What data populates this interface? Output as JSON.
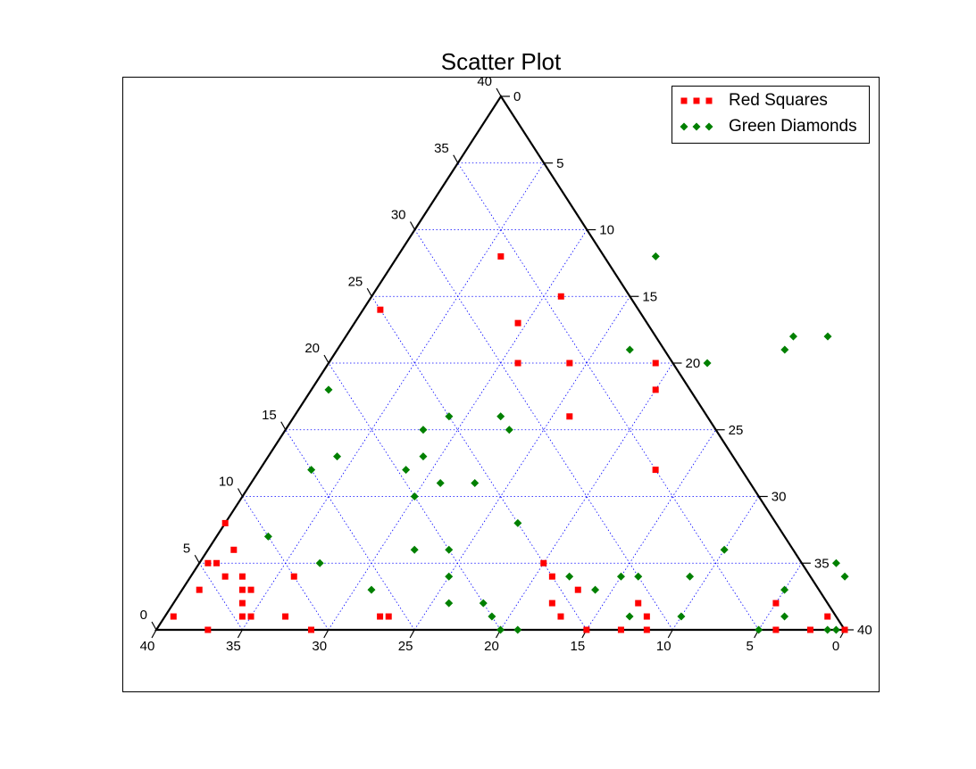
{
  "chart_data": {
    "type": "scatter",
    "subtype": "ternary",
    "title": "Scatter Plot",
    "scale": 40,
    "tick_step": 5,
    "grid": true,
    "legend_position": "top-right",
    "colors": {
      "red": "#ff0000",
      "green": "#008000",
      "grid": "#0000ff"
    },
    "axes": {
      "bottom": {
        "ticks": [
          "40",
          "35",
          "30",
          "25",
          "20",
          "15",
          "10",
          "5",
          "0"
        ]
      },
      "right": {
        "ticks": [
          "0",
          "5",
          "10",
          "15",
          "20",
          "25",
          "30",
          "35",
          "40"
        ]
      },
      "left": {
        "ticks": [
          "0",
          "5",
          "10",
          "15",
          "20",
          "25",
          "30",
          "35",
          "40"
        ]
      }
    },
    "series": [
      {
        "name": "Red Squares",
        "marker": "square",
        "color": "#ff0000",
        "legend_label": "Red Squares",
        "points": [
          [
            38.5,
            1
          ],
          [
            35,
            2
          ],
          [
            28.5,
            0
          ],
          [
            23,
            12
          ],
          [
            20,
            18
          ],
          [
            19,
            20
          ],
          [
            16,
            16
          ],
          [
            14,
            20
          ],
          [
            11,
            20
          ],
          [
            11,
            25
          ],
          [
            9.5,
            23
          ],
          [
            6,
            28
          ],
          [
            6,
            4
          ],
          [
            3,
            0
          ],
          [
            1,
            24
          ],
          [
            0,
            8
          ],
          [
            1.5,
            6
          ],
          [
            1,
            5
          ],
          [
            0.5,
            1
          ],
          [
            0.5,
            5
          ],
          [
            1,
            3
          ],
          [
            2,
            4
          ],
          [
            3,
            4
          ],
          [
            3.5,
            3
          ],
          [
            4,
            2
          ],
          [
            4,
            3
          ],
          [
            4.5,
            1
          ],
          [
            5,
            1
          ],
          [
            7,
            1
          ],
          [
            9,
            0
          ],
          [
            12.5,
            1
          ],
          [
            13,
            1
          ],
          [
            20,
            5
          ],
          [
            21,
            4
          ],
          [
            22,
            2
          ],
          [
            23,
            1
          ],
          [
            23,
            3
          ],
          [
            25,
            0
          ],
          [
            27,
            0
          ],
          [
            27,
            2
          ],
          [
            28,
            1
          ],
          [
            36,
            0
          ],
          [
            38,
            0
          ],
          [
            40,
            0
          ]
        ]
      },
      {
        "name": "Green Diamonds",
        "marker": "diamond",
        "color": "#008000",
        "legend_label": "Green Diamonds",
        "points": [
          [
            39.5,
            0
          ],
          [
            37,
            5
          ],
          [
            35,
            3
          ],
          [
            30,
            1
          ],
          [
            29,
            4
          ],
          [
            26,
            4
          ],
          [
            28,
            22
          ],
          [
            26,
            22
          ],
          [
            26,
            21
          ],
          [
            22,
            20
          ],
          [
            15,
            28
          ],
          [
            17,
            21
          ],
          [
            13,
            15
          ],
          [
            12,
            16
          ],
          [
            9,
            16
          ],
          [
            9,
            13
          ],
          [
            8.5,
            12
          ],
          [
            11,
            11
          ],
          [
            8,
            15
          ],
          [
            13,
            11
          ],
          [
            17,
            8
          ],
          [
            14,
            6
          ],
          [
            15,
            4
          ],
          [
            16,
            2
          ],
          [
            18,
            2
          ],
          [
            19,
            1
          ],
          [
            20,
            0
          ],
          [
            21,
            0
          ],
          [
            24,
            3
          ],
          [
            27,
            1
          ],
          [
            22,
            4
          ],
          [
            25,
            4
          ],
          [
            30,
            6
          ],
          [
            35,
            0
          ],
          [
            36,
            1
          ],
          [
            38,
            4
          ],
          [
            39,
            0
          ],
          [
            1,
            18
          ],
          [
            3,
            7
          ],
          [
            3,
            12
          ],
          [
            4,
            13
          ],
          [
            7,
            5
          ],
          [
            10,
            10
          ],
          [
            11,
            3
          ],
          [
            12,
            6
          ]
        ]
      }
    ]
  }
}
